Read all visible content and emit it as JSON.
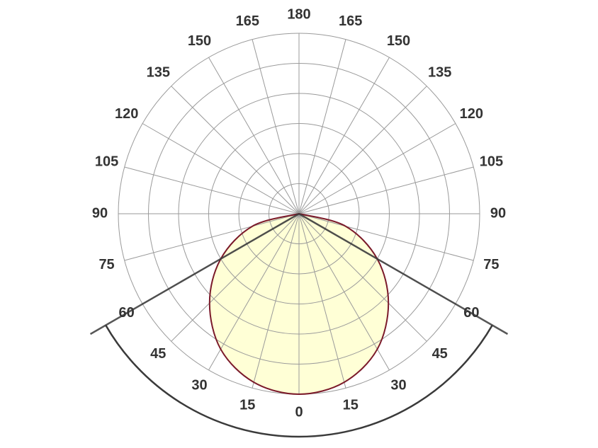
{
  "chart_data": {
    "type": "polar",
    "angles": [
      -90,
      -75,
      -60,
      -45,
      -30,
      -15,
      0,
      15,
      30,
      45,
      60,
      75,
      90
    ],
    "series": [
      {
        "color": "#7b1a2a",
        "fill": "#ffffd6",
        "values": [
          0,
          1.6,
          3,
          4.2,
          5.2,
          5.8,
          6,
          5.8,
          5.2,
          4.2,
          3,
          1.6,
          0
        ]
      }
    ],
    "rlim": [
      0,
      6
    ],
    "rticks": [
      1,
      2,
      3,
      4,
      5,
      6
    ],
    "thetaticks": [
      0,
      15,
      30,
      45,
      60,
      75,
      90,
      105,
      120,
      135,
      150,
      165,
      180
    ],
    "beam_angle": 60,
    "grid": true
  }
}
